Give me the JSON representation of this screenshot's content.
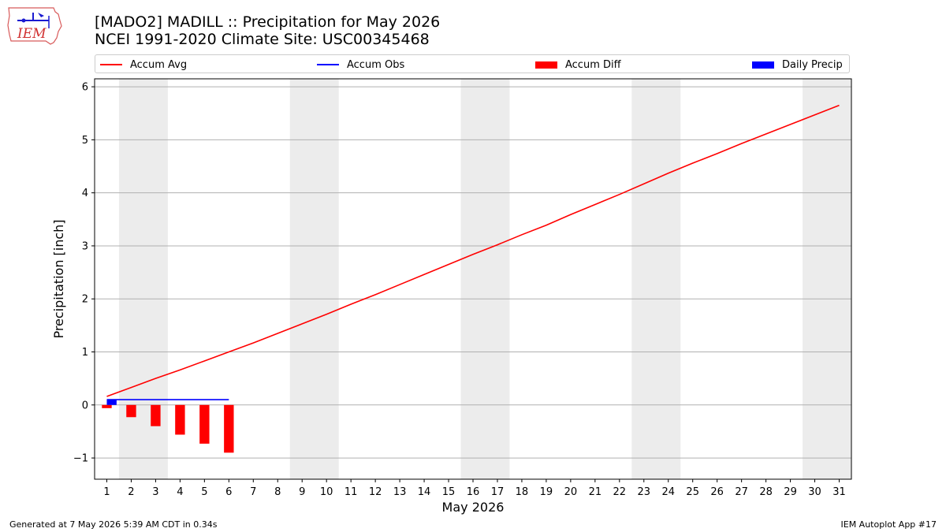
{
  "header": {
    "title_line1": "[MADO2] MADILL :: Precipitation for May 2026",
    "title_line2": "NCEI 1991-2020 Climate Site: USC00345468"
  },
  "logo": {
    "text": "IEM",
    "icon": "iem-iowa-logo"
  },
  "footer": {
    "generated": "Generated at 7 May 2026 5:39 AM CDT in 0.34s",
    "app": "IEM Autoplot App #17"
  },
  "colors": {
    "avg": "#ff0000",
    "obs": "#0000ff",
    "diff": "#ff0000",
    "daily": "#0000ff",
    "weekend": "#ececec",
    "grid": "#b0b0b0"
  },
  "chart_data": {
    "type": "line",
    "xlabel": "May 2026",
    "ylabel": "Precipitation [inch]",
    "xlim": [
      0.5,
      31.5
    ],
    "ylim": [
      -1.4,
      6.15
    ],
    "yticks": [
      -1,
      0,
      1,
      2,
      3,
      4,
      5,
      6
    ],
    "ytick_labels": [
      "−1",
      "0",
      "1",
      "2",
      "3",
      "4",
      "5",
      "6"
    ],
    "xticks": [
      1,
      2,
      3,
      4,
      5,
      6,
      7,
      8,
      9,
      10,
      11,
      12,
      13,
      14,
      15,
      16,
      17,
      18,
      19,
      20,
      21,
      22,
      23,
      24,
      25,
      26,
      27,
      28,
      29,
      30,
      31
    ],
    "grid": "horizontal",
    "legend_position": "top",
    "weekend_shading": [
      [
        1.5,
        3.5
      ],
      [
        8.5,
        10.5
      ],
      [
        15.5,
        17.5
      ],
      [
        22.5,
        24.5
      ],
      [
        29.5,
        31.5
      ]
    ],
    "series": [
      {
        "name": "Accum Avg",
        "kind": "line",
        "x": [
          1,
          2,
          3,
          4,
          5,
          6,
          7,
          8,
          9,
          10,
          11,
          12,
          13,
          14,
          15,
          16,
          17,
          18,
          19,
          20,
          21,
          22,
          23,
          24,
          25,
          26,
          27,
          28,
          29,
          30,
          31
        ],
        "values": [
          0.16,
          0.33,
          0.5,
          0.66,
          0.83,
          1.0,
          1.17,
          1.35,
          1.53,
          1.71,
          1.9,
          2.08,
          2.27,
          2.46,
          2.65,
          2.84,
          3.02,
          3.21,
          3.39,
          3.59,
          3.78,
          3.97,
          4.17,
          4.37,
          4.56,
          4.74,
          4.93,
          5.11,
          5.29,
          5.47,
          5.65
        ]
      },
      {
        "name": "Accum Obs",
        "kind": "line",
        "x": [
          1,
          2,
          3,
          4,
          5,
          6
        ],
        "values": [
          0.1,
          0.1,
          0.1,
          0.1,
          0.1,
          0.1
        ]
      },
      {
        "name": "Accum Diff",
        "kind": "bar",
        "x": [
          1,
          2,
          3,
          4,
          5,
          6
        ],
        "values": [
          -0.06,
          -0.23,
          -0.4,
          -0.56,
          -0.73,
          -0.9
        ]
      },
      {
        "name": "Daily Precip",
        "kind": "bar",
        "x": [
          1
        ],
        "values": [
          0.1
        ]
      }
    ]
  }
}
